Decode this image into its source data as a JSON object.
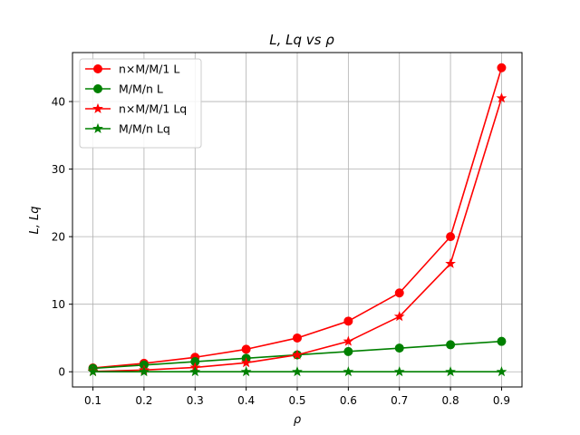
{
  "chart_data": {
    "type": "line",
    "title": "L, Lq vs ρ",
    "xlabel": "ρ",
    "ylabel": "L, Lq",
    "x": [
      0.1,
      0.2,
      0.3,
      0.4,
      0.5,
      0.6,
      0.7,
      0.8,
      0.9
    ],
    "x_ticks": [
      "0.1",
      "0.2",
      "0.3",
      "0.4",
      "0.5",
      "0.6",
      "0.7",
      "0.8",
      "0.9"
    ],
    "y_ticks": [
      0,
      10,
      20,
      30,
      40
    ],
    "xlim": [
      0.06,
      0.94
    ],
    "ylim": [
      -2.25,
      47.25
    ],
    "grid": true,
    "legend_position": "upper-left",
    "series": [
      {
        "name": "n×M/M/1 L",
        "color": "#ff0000",
        "marker": "circle",
        "values": [
          0.56,
          1.25,
          2.14,
          3.33,
          5.0,
          7.5,
          11.67,
          20.0,
          45.0
        ]
      },
      {
        "name": "M/M/n L",
        "color": "#008000",
        "marker": "circle",
        "values": [
          0.5,
          1.0,
          1.5,
          2.0,
          2.5,
          3.0,
          3.5,
          4.0,
          4.5
        ]
      },
      {
        "name": "n×M/M/1 Lq",
        "color": "#ff0000",
        "marker": "star",
        "values": [
          0.06,
          0.25,
          0.64,
          1.33,
          2.5,
          4.5,
          8.17,
          16.0,
          40.5
        ]
      },
      {
        "name": "M/M/n Lq",
        "color": "#008000",
        "marker": "star",
        "values": [
          0.0,
          0.0,
          0.0,
          0.0,
          0.0,
          0.0,
          0.0,
          0.0,
          0.0
        ]
      }
    ]
  }
}
